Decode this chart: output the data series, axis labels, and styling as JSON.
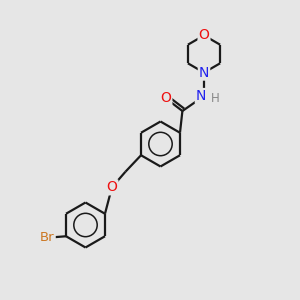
{
  "background_color": "#e6e6e6",
  "bond_color": "#1a1a1a",
  "atom_colors": {
    "O": "#ee1111",
    "N": "#2222ee",
    "Br": "#cc7722",
    "H": "#888888",
    "C": "#1a1a1a"
  },
  "figsize": [
    3.0,
    3.0
  ],
  "dpi": 100,
  "lw": 1.6,
  "r_morph": 0.62,
  "r_benz": 0.75
}
